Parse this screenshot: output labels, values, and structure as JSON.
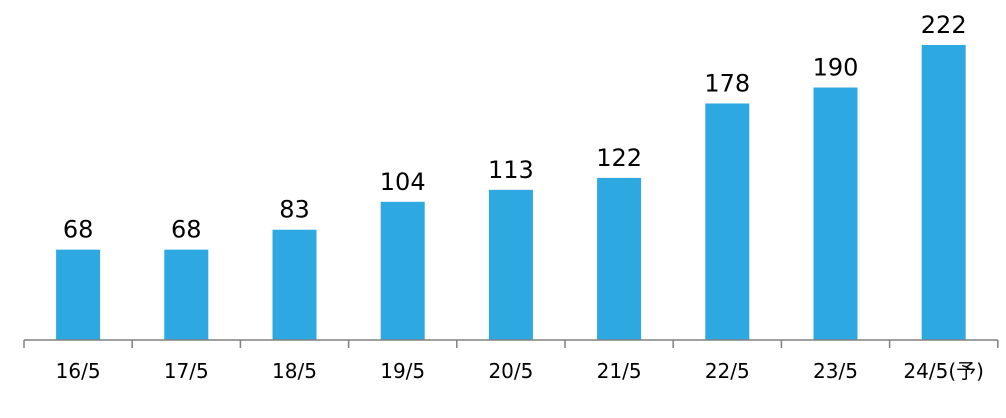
{
  "chart_data": {
    "type": "bar",
    "categories": [
      "16/5",
      "17/5",
      "18/5",
      "19/5",
      "20/5",
      "21/5",
      "22/5",
      "23/5",
      "24/5(予)"
    ],
    "values": [
      68,
      68,
      83,
      104,
      113,
      122,
      178,
      190,
      222
    ],
    "data_labels": [
      "68",
      "68",
      "83",
      "104",
      "113",
      "122",
      "178",
      "190",
      "222"
    ],
    "title": "",
    "xlabel": "",
    "ylabel": "",
    "ylim": [
      0,
      222
    ],
    "y_axis_visible": false,
    "grid": false,
    "legend": "none",
    "bar_color": "#2EA8E0",
    "axis_color": "#808080"
  }
}
